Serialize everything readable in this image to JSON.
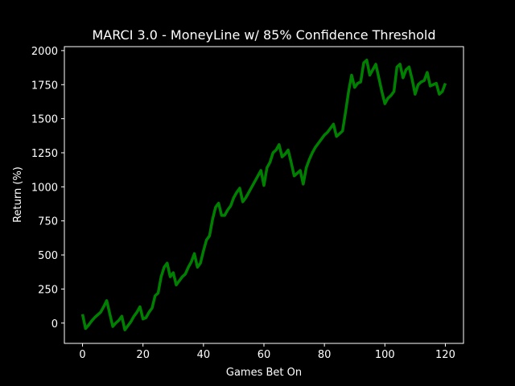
{
  "chart_data": {
    "type": "line",
    "title": "MARCI 3.0 - MoneyLine w/ 85% Confidence Threshold",
    "xlabel": "Games Bet On",
    "ylabel": "Return (%)",
    "x": [
      0,
      1,
      2,
      3,
      4,
      5,
      6,
      7,
      8,
      9,
      10,
      11,
      12,
      13,
      14,
      15,
      16,
      17,
      18,
      19,
      20,
      21,
      22,
      23,
      24,
      25,
      26,
      27,
      28,
      29,
      30,
      31,
      32,
      33,
      34,
      35,
      36,
      37,
      38,
      39,
      40,
      41,
      42,
      43,
      44,
      45,
      46,
      47,
      48,
      49,
      50,
      51,
      52,
      53,
      54,
      55,
      56,
      57,
      58,
      59,
      60,
      61,
      62,
      63,
      64,
      65,
      66,
      67,
      68,
      69,
      70,
      71,
      72,
      73,
      74,
      75,
      76,
      77,
      78,
      79,
      80,
      81,
      82,
      83,
      84,
      85,
      86,
      87,
      88,
      89,
      90,
      91,
      92,
      93,
      94,
      95,
      96,
      97,
      98,
      99,
      100,
      101,
      102,
      103,
      104,
      105,
      106,
      107,
      108,
      109,
      110,
      111,
      112,
      113,
      114,
      115,
      116,
      117,
      118,
      119,
      120
    ],
    "series": [
      {
        "name": "Return",
        "color": "#008000",
        "values": [
          65,
          -40,
          -15,
          15,
          40,
          60,
          80,
          120,
          165,
          70,
          -25,
          0,
          20,
          50,
          -50,
          -20,
          10,
          50,
          80,
          120,
          30,
          40,
          80,
          110,
          200,
          220,
          340,
          410,
          440,
          340,
          370,
          280,
          310,
          340,
          360,
          410,
          450,
          510,
          410,
          440,
          530,
          610,
          640,
          760,
          850,
          880,
          790,
          790,
          830,
          860,
          920,
          960,
          990,
          890,
          920,
          960,
          1000,
          1040,
          1080,
          1120,
          1010,
          1140,
          1180,
          1250,
          1270,
          1310,
          1220,
          1240,
          1270,
          1180,
          1080,
          1100,
          1120,
          1020,
          1140,
          1200,
          1250,
          1290,
          1320,
          1350,
          1380,
          1400,
          1430,
          1460,
          1370,
          1390,
          1410,
          1550,
          1700,
          1820,
          1730,
          1760,
          1770,
          1910,
          1930,
          1820,
          1860,
          1900,
          1800,
          1700,
          1610,
          1650,
          1670,
          1700,
          1880,
          1900,
          1800,
          1860,
          1880,
          1790,
          1680,
          1750,
          1770,
          1780,
          1840,
          1740,
          1750,
          1760,
          1680,
          1700,
          1760
        ]
      }
    ],
    "xlim": [
      -6,
      126
    ],
    "ylim": [
      -149,
      2029
    ],
    "xticks": [
      0,
      20,
      40,
      60,
      80,
      100,
      120
    ],
    "yticks": [
      0,
      250,
      500,
      750,
      1000,
      1250,
      1500,
      1750,
      2000
    ]
  }
}
